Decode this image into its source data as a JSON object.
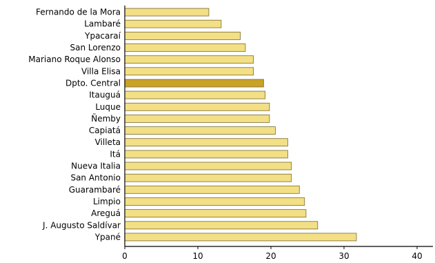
{
  "chart_data": {
    "type": "bar",
    "orientation": "horizontal",
    "categories": [
      "Fernando de la Mora",
      "Lambaré",
      "Ypacaraí",
      "San Lorenzo",
      "Mariano Roque Alonso",
      "Villa Elisa",
      "Dpto. Central",
      "Itauguá",
      "Luque",
      "Ñemby",
      "Capiatá",
      "Villeta",
      "Itá",
      "Nueva Italia",
      "San Antonio",
      "Guarambaré",
      "Limpio",
      "Areguá",
      "J. Augusto Saldívar",
      "Ypané"
    ],
    "values": [
      11.5,
      13.2,
      15.8,
      16.5,
      17.6,
      17.6,
      19.0,
      19.2,
      19.8,
      19.8,
      20.6,
      22.3,
      22.3,
      22.8,
      22.8,
      23.9,
      24.6,
      24.8,
      26.4,
      31.7
    ],
    "highlight": "Dpto. Central",
    "xlim": [
      0,
      40
    ],
    "xticks": [
      0,
      10,
      20,
      30,
      40
    ],
    "title": "",
    "xlabel": "",
    "ylabel": "",
    "grid": false,
    "colors": {
      "bar_fill": "#f2df86",
      "bar_stroke": "#7a6a2a",
      "highlight_fill": "#c9a227",
      "axis": "#000000"
    }
  }
}
